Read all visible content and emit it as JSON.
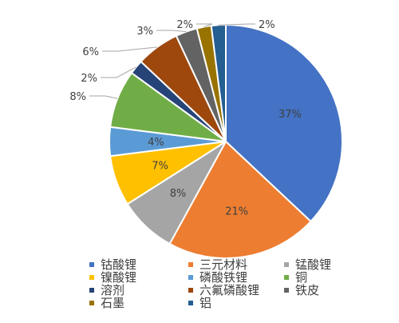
{
  "chart_data": {
    "type": "pie",
    "start_angle_deg": 0,
    "direction": "clockwise",
    "label_format": "{value}%",
    "legend_position": "bottom",
    "legend_columns": 3,
    "slices": [
      {
        "name": "钴酸锂",
        "value": 37,
        "color": "#4472C4"
      },
      {
        "name": "三元材料",
        "value": 21,
        "color": "#ED7D31"
      },
      {
        "name": "锰酸锂",
        "value": 8,
        "color": "#A5A5A5"
      },
      {
        "name": "镍酸锂",
        "value": 7,
        "color": "#FFC000"
      },
      {
        "name": "磷酸铁锂",
        "value": 4,
        "color": "#5B9BD5"
      },
      {
        "name": "铜",
        "value": 8,
        "color": "#70AD47"
      },
      {
        "name": "溶剂",
        "value": 2,
        "color": "#264478"
      },
      {
        "name": "六氟磷酸锂",
        "value": 6,
        "color": "#9E480E"
      },
      {
        "name": "铁皮",
        "value": 3,
        "color": "#636363"
      },
      {
        "name": "石墨",
        "value": 2,
        "color": "#997300"
      },
      {
        "name": "铝",
        "value": 2,
        "color": "#255E91"
      }
    ]
  }
}
